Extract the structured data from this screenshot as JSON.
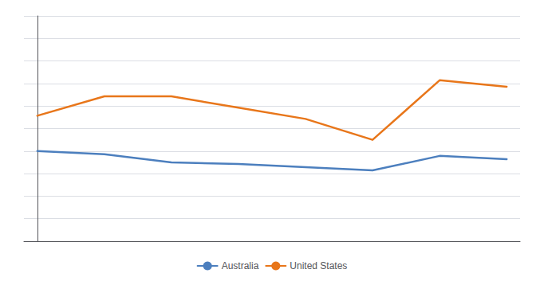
{
  "chart_data": {
    "type": "line",
    "x": [
      0,
      1,
      2,
      3,
      4,
      5,
      6,
      7
    ],
    "series": [
      {
        "name": "Australia",
        "color": "#4C7FBE",
        "values": [
          5.6,
          5.4,
          4.9,
          4.8,
          4.6,
          4.4,
          5.3,
          5.1
        ]
      },
      {
        "name": "United States",
        "color": "#E8761A",
        "values": [
          7.8,
          9.0,
          9.0,
          8.3,
          7.6,
          6.3,
          10.0,
          9.6
        ]
      }
    ],
    "xlim": [
      -0.2,
      7.2
    ],
    "ylim": [
      0,
      14
    ],
    "yticks": [
      0,
      1.4,
      2.8,
      4.2,
      5.6,
      7,
      8.4,
      9.8,
      11.2,
      12.6,
      14
    ],
    "grid": true,
    "legend": "bottom",
    "tick_labels": false
  }
}
